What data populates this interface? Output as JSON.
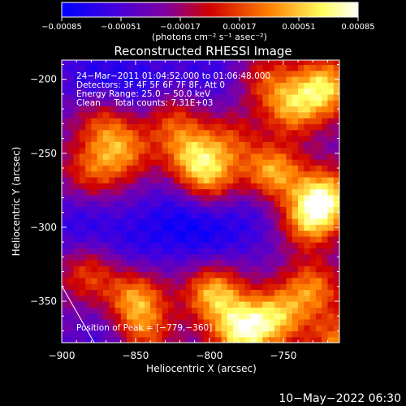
{
  "chart_data": {
    "type": "heatmap",
    "title": "Reconstructed RHESSI Image",
    "xlabel": "Heliocentric X (arcsec)",
    "ylabel": "Heliocentric Y (arcsec)",
    "xlim": [
      -900,
      -712
    ],
    "ylim": [
      -378,
      -187
    ],
    "x_ticks": [
      -900,
      -850,
      -800,
      -750
    ],
    "y_ticks": [
      -350,
      -300,
      -250,
      -200
    ],
    "x_tick_labels": [
      "−900",
      "−850",
      "−800",
      "−750"
    ],
    "y_tick_labels": [
      "−350",
      "−300",
      "−250",
      "−200"
    ],
    "colorbar": {
      "range": [
        -0.00085,
        0.00085
      ],
      "ticks": [
        -0.00085,
        -0.00051,
        -0.00017,
        0.00017,
        0.00051,
        0.00085
      ],
      "tick_labels": [
        "−0.00085",
        "−0.00051",
        "−0.00017",
        "0.00017",
        "0.00051",
        "0.00085"
      ],
      "units": "(photons cm⁻² s⁻¹ asec⁻²)",
      "colormap": [
        "#0000ff",
        "#4000e0",
        "#8000a0",
        "#d00000",
        "#ff8000",
        "#ffff60",
        "#ffffff"
      ]
    },
    "annotations": [
      "24−Mar−2011 01:04:52.000 to 01:06:48.000",
      "Detectors: 3F 4F 5F 6F 7F 8F, Att 0",
      "Energy Range: 25.0 − 50.0 keV",
      "Clean     Total counts: 7.31E+03"
    ],
    "peak_label": "Position of Peak = [−779,−360]",
    "peak": [
      -779,
      -360
    ],
    "hot_spots": [
      {
        "x": -722,
        "y": -205,
        "v": 0.00075
      },
      {
        "x": -745,
        "y": -220,
        "v": 0.0006
      },
      {
        "x": -757,
        "y": -262,
        "v": 0.0007
      },
      {
        "x": -722,
        "y": -280,
        "v": 0.0008
      },
      {
        "x": -733,
        "y": -296,
        "v": 0.0006
      },
      {
        "x": -800,
        "y": -266,
        "v": 0.00055
      },
      {
        "x": -812,
        "y": -250,
        "v": 0.0005
      },
      {
        "x": -826,
        "y": -226,
        "v": 0.00035
      },
      {
        "x": -858,
        "y": -248,
        "v": 0.00045
      },
      {
        "x": -872,
        "y": -228,
        "v": 0.00035
      },
      {
        "x": -880,
        "y": -262,
        "v": 0.00035
      },
      {
        "x": -797,
        "y": -344,
        "v": 0.0007
      },
      {
        "x": -778,
        "y": -370,
        "v": 0.00085
      },
      {
        "x": -754,
        "y": -360,
        "v": 0.0006
      },
      {
        "x": -730,
        "y": -340,
        "v": 0.00055
      },
      {
        "x": -850,
        "y": -348,
        "v": 0.0006
      },
      {
        "x": -882,
        "y": -330,
        "v": 0.0004
      },
      {
        "x": -845,
        "y": -372,
        "v": 0.0004
      },
      {
        "x": -712,
        "y": -378,
        "v": 0.0005
      },
      {
        "x": -783,
        "y": -240,
        "v": 0.0003
      },
      {
        "x": -762,
        "y": -200,
        "v": 0.0003
      }
    ],
    "cold_spots": [
      {
        "x": -880,
        "y": -198,
        "v": -0.00045
      },
      {
        "x": -845,
        "y": -205,
        "v": -0.00045
      },
      {
        "x": -800,
        "y": -195,
        "v": -0.0004
      },
      {
        "x": -820,
        "y": -292,
        "v": -0.00045
      },
      {
        "x": -888,
        "y": -300,
        "v": -0.00045
      },
      {
        "x": -850,
        "y": -310,
        "v": -0.0004
      },
      {
        "x": -770,
        "y": -292,
        "v": -0.00035
      },
      {
        "x": -798,
        "y": -308,
        "v": -0.0004
      },
      {
        "x": -868,
        "y": -378,
        "v": -0.0004
      },
      {
        "x": -727,
        "y": -320,
        "v": -0.00025
      },
      {
        "x": -760,
        "y": -235,
        "v": -0.0003
      }
    ],
    "base_value": -0.00032
  },
  "footer": {
    "timestamp": "10−May−2022 06:30"
  }
}
